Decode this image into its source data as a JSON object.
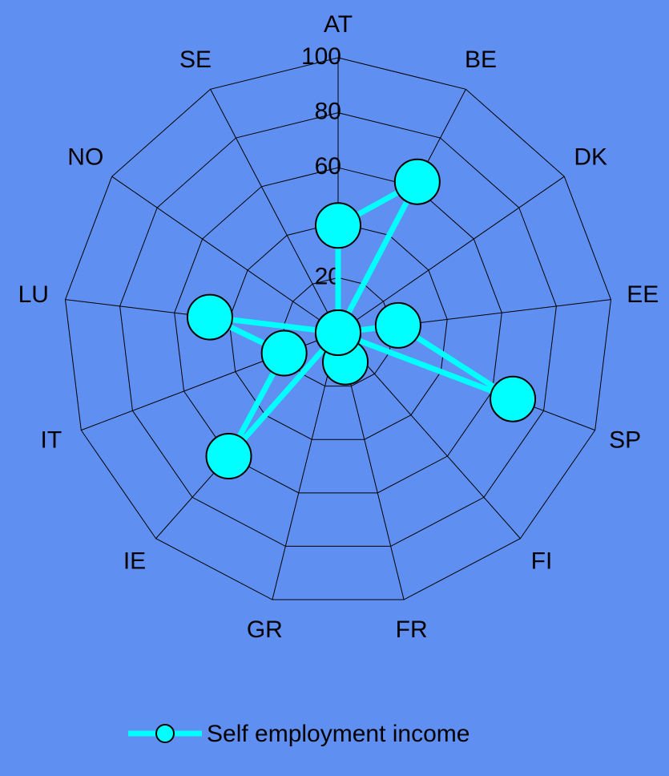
{
  "chart_data": {
    "type": "radar",
    "categories": [
      "AT",
      "BE",
      "DK",
      "EE",
      "SP",
      "FI",
      "FR",
      "GR",
      "IE",
      "IT",
      "LU",
      "NO",
      "SE"
    ],
    "series": [
      {
        "name": "Self employment income",
        "color": "#00ffff",
        "values": [
          39,
          62,
          0,
          22,
          68,
          0,
          11,
          0,
          60,
          21,
          47,
          0,
          0
        ]
      }
    ],
    "ylim": [
      0,
      100
    ],
    "yticks": [
      0,
      20,
      40,
      60,
      80,
      100
    ],
    "grid": true,
    "legend": "bottom"
  }
}
